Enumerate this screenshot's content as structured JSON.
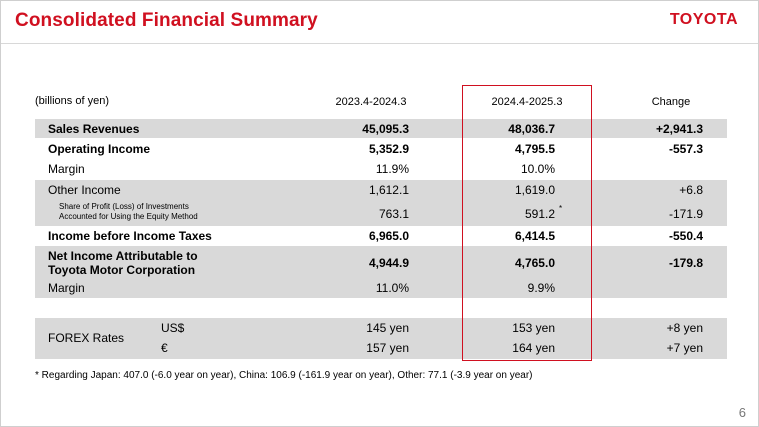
{
  "title": "Consolidated Financial Summary",
  "logo": "TOYOTA",
  "unit": "(billions of yen)",
  "columns": [
    "2023.4-2024.3",
    "2024.4-2025.3",
    "Change"
  ],
  "rows": {
    "sales": {
      "label": "Sales Revenues",
      "v1": "45,095.3",
      "v2": "48,036.7",
      "v3": "+2,941.3"
    },
    "op": {
      "label": "Operating Income",
      "v1": "5,352.9",
      "v2": "4,795.5",
      "v3": "-557.3"
    },
    "margin1": {
      "label": "Margin",
      "v1": "11.9%",
      "v2": "10.0%",
      "v3": ""
    },
    "other": {
      "label": "Other Income",
      "v1": "1,612.1",
      "v2": "1,619.0",
      "v3": "+6.8"
    },
    "share": {
      "label_line1": "Share of Profit (Loss) of Investments",
      "label_line2": "Accounted for Using the Equity Method",
      "v1": "763.1",
      "v2": "591.2",
      "v2_mark": "*",
      "v3": "-171.9"
    },
    "pretax": {
      "label": "Income before Income Taxes",
      "v1": "6,965.0",
      "v2": "6,414.5",
      "v3": "-550.4"
    },
    "net": {
      "label_line1": "Net Income Attributable to",
      "label_line2": "Toyota Motor Corporation",
      "v1": "4,944.9",
      "v2": "4,765.0",
      "v3": "-179.8"
    },
    "margin2": {
      "label": "Margin",
      "v1": "11.0%",
      "v2": "9.9%",
      "v3": ""
    },
    "forex": {
      "label": "FOREX Rates",
      "usd": {
        "currency": "US$",
        "v1": "145 yen",
        "v2": "153 yen",
        "v3": "+8 yen"
      },
      "eur": {
        "currency": "€",
        "v1": "157 yen",
        "v2": "164 yen",
        "v3": "+7 yen"
      }
    }
  },
  "footnote": "* Regarding Japan: 407.0 (-6.0 year on year), China: 106.9  (-161.9 year on year), Other: 77.1 (-3.9 year on year)",
  "page_number": "6",
  "colors": {
    "brand_red": "#d01020",
    "row_shade": "#d9d9d9"
  }
}
